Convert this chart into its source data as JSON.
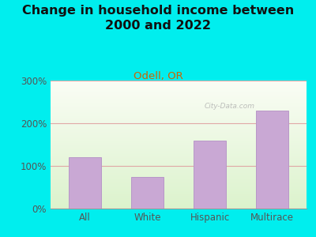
{
  "title": "Change in household income between\n2000 and 2022",
  "subtitle": "Odell, OR",
  "categories": [
    "All",
    "White",
    "Hispanic",
    "Multirace"
  ],
  "values": [
    120,
    75,
    160,
    230
  ],
  "bar_color": "#C9A8D4",
  "bar_edge_color": "#B898C8",
  "background_color": "#00EEEE",
  "title_fontsize": 11.5,
  "subtitle_fontsize": 9.5,
  "subtitle_color": "#CC6600",
  "ylim": [
    0,
    300
  ],
  "yticks": [
    0,
    100,
    200,
    300
  ],
  "watermark": "City-Data.com",
  "grid_color": "#E0A0A0",
  "tick_label_color": "#555555",
  "title_color": "#111111"
}
